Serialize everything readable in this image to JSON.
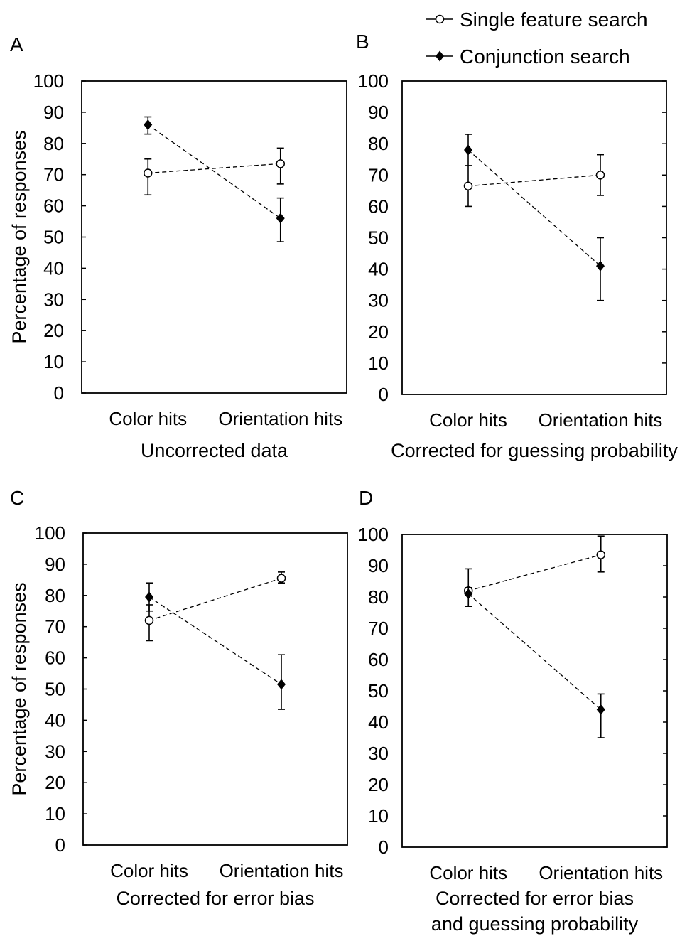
{
  "legend": {
    "items": [
      {
        "label": "Single feature search",
        "marker": "open-circle"
      },
      {
        "label": "Conjunction search",
        "marker": "filled-diamond"
      }
    ],
    "placement": "top-right"
  },
  "colors": {
    "line": "#000000",
    "open_marker_fill": "#ffffff",
    "filled_marker": "#000000"
  },
  "chart_data": [
    {
      "panel": "A",
      "type": "line",
      "categories": [
        "Color hits",
        "Orientation hits"
      ],
      "xlabel": "Uncorrected data",
      "ylabel": "Percentage of responses",
      "ylim": [
        0,
        100
      ],
      "yticks": [
        0,
        10,
        20,
        30,
        40,
        50,
        60,
        70,
        80,
        90,
        100
      ],
      "grid": false,
      "series": [
        {
          "name": "Single feature search",
          "values": [
            70.5,
            73.5
          ],
          "errors": [
            [
              63.5,
              75
            ],
            [
              67,
              78.5
            ]
          ]
        },
        {
          "name": "Conjunction search",
          "values": [
            86,
            56
          ],
          "errors": [
            [
              83,
              88.5
            ],
            [
              48.5,
              62.5
            ]
          ]
        }
      ]
    },
    {
      "panel": "B",
      "type": "line",
      "categories": [
        "Color hits",
        "Orientation hits"
      ],
      "xlabel": "Corrected for guessing probability",
      "ylabel": "",
      "ylim": [
        0,
        100
      ],
      "yticks": [
        0,
        10,
        20,
        30,
        40,
        50,
        60,
        70,
        80,
        90,
        100
      ],
      "grid": false,
      "series": [
        {
          "name": "Single feature search",
          "values": [
            66.5,
            70
          ],
          "errors": [
            [
              60,
              73
            ],
            [
              63.5,
              76.5
            ]
          ]
        },
        {
          "name": "Conjunction search",
          "values": [
            78,
            41
          ],
          "errors": [
            [
              73,
              83
            ],
            [
              30,
              50
            ]
          ]
        }
      ]
    },
    {
      "panel": "C",
      "type": "line",
      "categories": [
        "Color hits",
        "Orientation hits"
      ],
      "xlabel": "Corrected for error bias",
      "ylabel": "Percentage of responses",
      "ylim": [
        0,
        100
      ],
      "yticks": [
        0,
        10,
        20,
        30,
        40,
        50,
        60,
        70,
        80,
        90,
        100
      ],
      "grid": false,
      "series": [
        {
          "name": "Single feature search",
          "values": [
            72,
            85.5
          ],
          "errors": [
            [
              65.5,
              77
            ],
            [
              84,
              87.5
            ]
          ]
        },
        {
          "name": "Conjunction search",
          "values": [
            79.5,
            51.5
          ],
          "errors": [
            [
              75,
              84
            ],
            [
              43.5,
              61
            ]
          ]
        }
      ]
    },
    {
      "panel": "D",
      "type": "line",
      "categories": [
        "Color hits",
        "Orientation hits"
      ],
      "xlabel": "Corrected for error bias and guessing probability",
      "xlabel_lines": [
        "Corrected for error bias",
        "and guessing probability"
      ],
      "ylabel": "",
      "ylim": [
        0,
        100
      ],
      "yticks": [
        0,
        10,
        20,
        30,
        40,
        50,
        60,
        70,
        80,
        90,
        100
      ],
      "grid": false,
      "series": [
        {
          "name": "Single feature search",
          "values": [
            82,
            93.5
          ],
          "errors": [
            [
              77,
              89
            ],
            [
              88,
              99.5
            ]
          ]
        },
        {
          "name": "Conjunction search",
          "values": [
            81,
            44
          ],
          "errors": [
            [
              77,
              83
            ],
            [
              35,
              49
            ]
          ]
        }
      ]
    }
  ]
}
